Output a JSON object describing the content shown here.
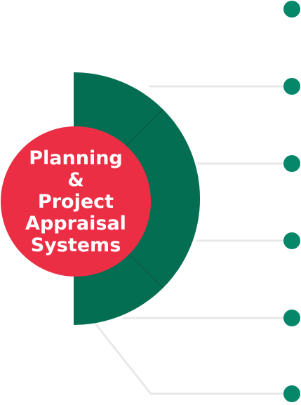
{
  "center": {
    "lines": [
      "Planning",
      "&",
      "Project",
      "Appraisal",
      "Systems"
    ]
  },
  "colors": {
    "circle_fill": "#EC2E45",
    "semicircle_fill": "#036E52",
    "node_dot": "#07876A",
    "connector": "#E8E8E8",
    "divider": "#0A5C44"
  },
  "node_count": 6
}
